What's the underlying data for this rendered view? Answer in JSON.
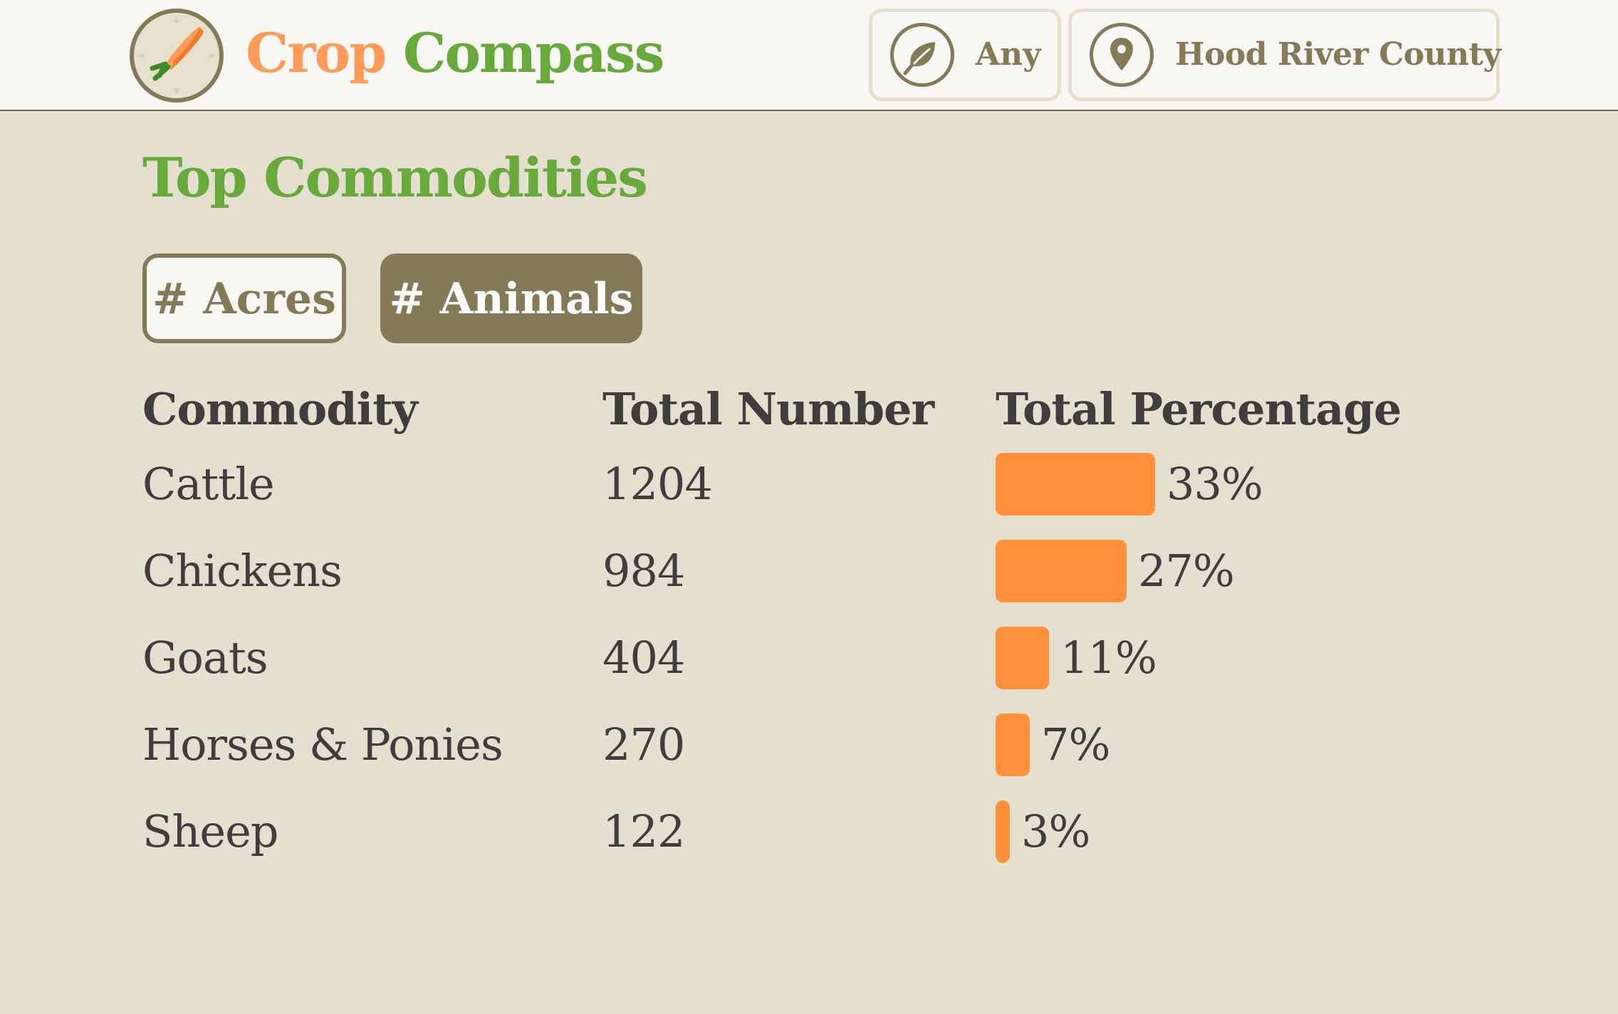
{
  "header": {
    "brand_part1": "Crop",
    "brand_part2": "Compass",
    "logo_icon": "carrot-compass-icon",
    "filters": [
      {
        "icon": "leaf-icon",
        "label": "Any"
      },
      {
        "icon": "location-pin-icon",
        "label": "Hood River County"
      }
    ]
  },
  "main": {
    "title": "Top Commodities",
    "toggles": [
      {
        "label": "# Acres",
        "active": false
      },
      {
        "label": "# Animals",
        "active": true
      }
    ],
    "table": {
      "columns": [
        "Commodity",
        "Total Number",
        "Total Percentage"
      ],
      "rows": [
        {
          "commodity": "Cattle",
          "total": "1204",
          "percent": "33%",
          "fraction": 0.33
        },
        {
          "commodity": "Chickens",
          "total": "984",
          "percent": "27%",
          "fraction": 0.27
        },
        {
          "commodity": "Goats",
          "total": "404",
          "percent": "11%",
          "fraction": 0.11
        },
        {
          "commodity": "Horses & Ponies",
          "total": "270",
          "percent": "7%",
          "fraction": 0.07
        },
        {
          "commodity": "Sheep",
          "total": "122",
          "percent": "3%",
          "fraction": 0.03
        }
      ]
    }
  },
  "colors": {
    "brand_orange": "#ff9b59",
    "brand_green": "#67a93b",
    "bar_orange": "#ff913c",
    "olive": "#857a58",
    "background": "#e5dfcf",
    "header_bg": "#f8f7f3",
    "text": "#3e3e3e"
  }
}
